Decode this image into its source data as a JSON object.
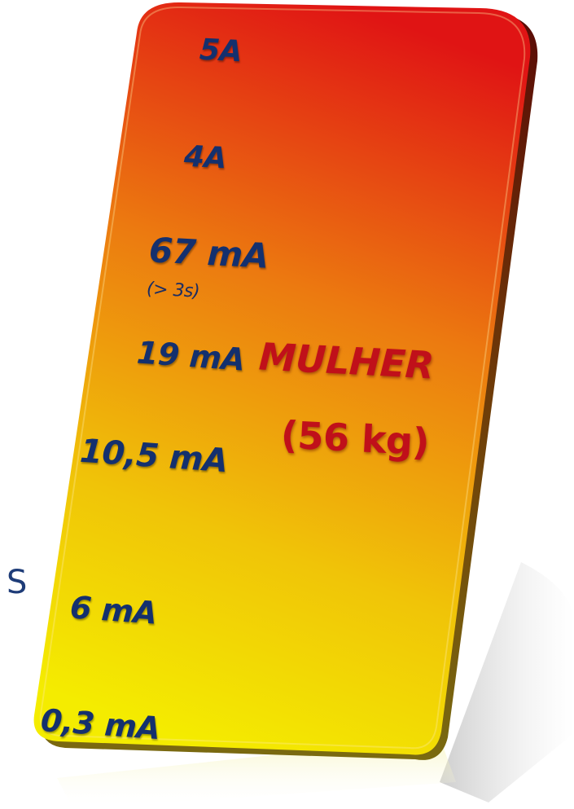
{
  "edge_text": "S",
  "levels": [
    {
      "label": "5A"
    },
    {
      "label": "4A"
    },
    {
      "label": "67 mA"
    },
    {
      "label": "(> 3s)"
    },
    {
      "label": "19 mA"
    },
    {
      "label": "10,5 mA"
    },
    {
      "label": "6 mA"
    },
    {
      "label": "0,3 mA"
    }
  ],
  "subject": {
    "line1": "MULHER",
    "line2": "(56 kg)"
  },
  "colors": {
    "card_top": "#e01414",
    "card_middle": "#ec7a10",
    "card_bottom": "#f4ec00",
    "label": "#14306e",
    "subject": "#c0101a"
  }
}
